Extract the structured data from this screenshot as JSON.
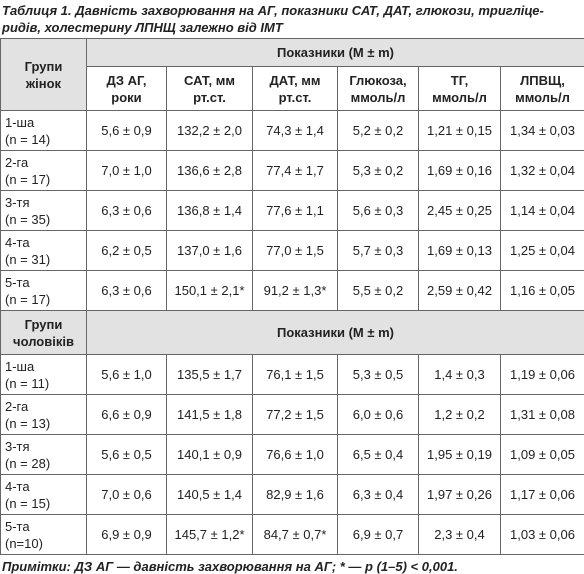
{
  "caption": {
    "label": "Таблиця 1.",
    "lines": [
      "Давність захворювання на АГ, показники САТ, ДАТ, глюкози, тригліце-",
      "ридів, холестерину ЛПНЩ залежно від ІМТ"
    ]
  },
  "table": {
    "columns": [
      [
        "ДЗ АГ,",
        "роки"
      ],
      [
        "САТ, мм",
        "рт.ст."
      ],
      [
        "ДАТ, мм",
        "рт.ст."
      ],
      [
        "Глюкоза,",
        "ммоль/л"
      ],
      [
        "ТГ,",
        "ммоль/л"
      ],
      [
        "ЛПВЩ,",
        "ммоль/л"
      ]
    ],
    "sections": [
      {
        "group_label": [
          "Групи",
          "жінок"
        ],
        "indicators_label": "Показники (M ± m)",
        "rows": [
          [
            [
              "1-ша",
              "(n = 14)"
            ],
            "5,6 ± 0,9",
            "132,2 ± 2,0",
            "74,3 ± 1,4",
            "5,2 ± 0,2",
            "1,21 ± 0,15",
            "1,34 ± 0,03"
          ],
          [
            [
              "2-га",
              "(n = 17)"
            ],
            "7,0 ± 1,0",
            "136,6 ± 2,8",
            "77,4 ± 1,7",
            "5,3 ± 0,2",
            "1,69 ± 0,16",
            "1,32 ± 0,04"
          ],
          [
            [
              "3-тя",
              "(n = 35)"
            ],
            "6,3 ± 0,6",
            "136,8 ± 1,4",
            "77,6 ± 1,1",
            "5,6 ± 0,3",
            "2,45 ± 0,25",
            "1,14 ± 0,04"
          ],
          [
            [
              "4-та",
              "(n = 31)"
            ],
            "6,2 ± 0,5",
            "137,0 ± 1,6",
            "77,0 ± 1,5",
            "5,7 ± 0,3",
            "1,69 ± 0,13",
            "1,25 ± 0,04"
          ],
          [
            [
              "5-та",
              "(n = 17)"
            ],
            "6,3 ± 0,6",
            "150,1 ± 2,1*",
            "91,2 ± 1,3*",
            "5,5 ± 0,2",
            "2,59 ± 0,42",
            "1,16 ± 0,05"
          ]
        ]
      },
      {
        "group_label": [
          "Групи",
          "чоловіків"
        ],
        "indicators_label": "Показники (M ± m)",
        "rows": [
          [
            [
              "1-ша",
              "(n = 11)"
            ],
            "5,6 ± 1,0",
            "135,5 ± 1,7",
            "76,1 ± 1,5",
            "5,3 ± 0,5",
            "1,4 ± 0,3",
            "1,19 ± 0,06"
          ],
          [
            [
              "2-га",
              "(n = 13)"
            ],
            "6,6 ± 0,9",
            "141,5 ± 1,8",
            "77,2 ± 1,5",
            "6,0 ± 0,6",
            "1,2 ± 0,2",
            "1,31 ± 0,08"
          ],
          [
            [
              "3-тя",
              "(n = 28)"
            ],
            "5,6 ± 0,5",
            "140,1 ± 0,9",
            "76,6 ± 1,0",
            "6,5 ± 0,4",
            "1,95 ± 0,19",
            "1,09 ± 0,05"
          ],
          [
            [
              "4-та",
              "(n = 15)"
            ],
            "7,0 ± 0,6",
            "140,5 ± 1,4",
            "82,9 ± 1,6",
            "6,3 ± 0,4",
            "1,97 ± 0,26",
            "1,17 ± 0,06"
          ],
          [
            [
              "5-та",
              "(n=10)"
            ],
            "6,9 ± 0,9",
            "145,7 ± 1,2*",
            "84,7 ± 0,7*",
            "6,9 ± 0,7",
            "2,3 ± 0,4",
            "1,03 ± 0,06"
          ]
        ]
      }
    ]
  },
  "footnote": "Примітки: ДЗ АГ — давність захворювання на АГ; * — р (1–5) < 0,001."
}
